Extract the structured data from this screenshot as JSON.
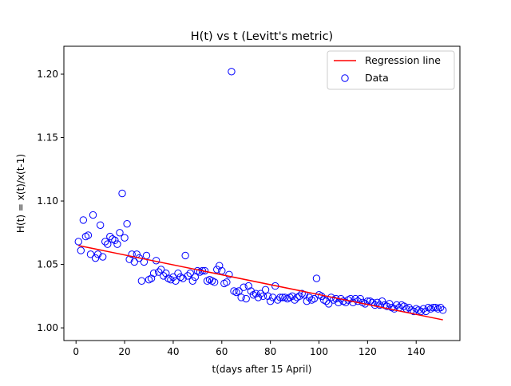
{
  "chart_data": {
    "type": "scatter",
    "title": "H(t) vs t (Levitt's metric)",
    "xlabel": "t(days after 15 April)",
    "ylabel": "H(t) = x(t)/x(t-1)",
    "xlim": [
      -5,
      158
    ],
    "ylim": [
      0.99,
      1.222
    ],
    "xticks": [
      0,
      20,
      40,
      60,
      80,
      100,
      120,
      140
    ],
    "xtick_labels": [
      "0",
      "20",
      "40",
      "60",
      "80",
      "100",
      "120",
      "140"
    ],
    "yticks": [
      1.0,
      1.05,
      1.1,
      1.15,
      1.2
    ],
    "ytick_labels": [
      "1.00",
      "1.05",
      "1.10",
      "1.15",
      "1.20"
    ],
    "grid": false,
    "legend": {
      "position": "top-right",
      "entries": [
        {
          "label": "Regression line",
          "kind": "line",
          "color": "#ff0000"
        },
        {
          "label": "Data",
          "kind": "marker",
          "color": "#0000ff"
        }
      ]
    },
    "series": [
      {
        "name": "Data",
        "kind": "scatter",
        "marker": "open-circle",
        "color": "#0000ff",
        "x": [
          1,
          2,
          3,
          4,
          5,
          6,
          7,
          8,
          9,
          10,
          11,
          12,
          13,
          14,
          15,
          16,
          17,
          18,
          19,
          20,
          21,
          22,
          23,
          24,
          25,
          26,
          27,
          28,
          29,
          30,
          31,
          32,
          33,
          34,
          35,
          36,
          37,
          38,
          39,
          40,
          41,
          42,
          43,
          44,
          45,
          46,
          47,
          48,
          49,
          50,
          51,
          52,
          53,
          54,
          55,
          56,
          57,
          58,
          59,
          60,
          61,
          62,
          63,
          64,
          65,
          66,
          67,
          68,
          69,
          70,
          71,
          72,
          73,
          74,
          75,
          76,
          77,
          78,
          79,
          80,
          81,
          82,
          83,
          84,
          85,
          86,
          87,
          88,
          89,
          90,
          91,
          92,
          93,
          94,
          95,
          96,
          97,
          98,
          99,
          100,
          101,
          102,
          103,
          104,
          105,
          106,
          107,
          108,
          109,
          110,
          111,
          112,
          113,
          114,
          115,
          116,
          117,
          118,
          119,
          120,
          121,
          122,
          123,
          124,
          125,
          126,
          127,
          128,
          129,
          130,
          131,
          132,
          133,
          134,
          135,
          136,
          137,
          138,
          139,
          140,
          141,
          142,
          143,
          144,
          145,
          146,
          147,
          148,
          149,
          150,
          151
        ],
        "y": [
          1.068,
          1.061,
          1.085,
          1.072,
          1.073,
          1.058,
          1.089,
          1.055,
          1.058,
          1.081,
          1.056,
          1.068,
          1.066,
          1.072,
          1.07,
          1.069,
          1.066,
          1.075,
          1.106,
          1.071,
          1.082,
          1.054,
          1.058,
          1.052,
          1.058,
          1.055,
          1.037,
          1.052,
          1.057,
          1.038,
          1.039,
          1.043,
          1.053,
          1.044,
          1.046,
          1.041,
          1.043,
          1.039,
          1.038,
          1.04,
          1.037,
          1.043,
          1.04,
          1.039,
          1.057,
          1.041,
          1.043,
          1.037,
          1.04,
          1.045,
          1.044,
          1.045,
          1.045,
          1.037,
          1.038,
          1.037,
          1.036,
          1.046,
          1.049,
          1.045,
          1.035,
          1.036,
          1.042,
          1.202,
          1.029,
          1.028,
          1.029,
          1.024,
          1.032,
          1.023,
          1.033,
          1.029,
          1.026,
          1.027,
          1.024,
          1.027,
          1.025,
          1.03,
          1.025,
          1.021,
          1.024,
          1.033,
          1.022,
          1.024,
          1.024,
          1.024,
          1.023,
          1.024,
          1.025,
          1.022,
          1.024,
          1.025,
          1.027,
          1.026,
          1.021,
          1.024,
          1.022,
          1.023,
          1.039,
          1.026,
          1.025,
          1.022,
          1.021,
          1.019,
          1.024,
          1.022,
          1.023,
          1.02,
          1.023,
          1.021,
          1.02,
          1.022,
          1.023,
          1.02,
          1.023,
          1.021,
          1.023,
          1.02,
          1.019,
          1.021,
          1.021,
          1.02,
          1.018,
          1.02,
          1.018,
          1.021,
          1.018,
          1.017,
          1.019,
          1.016,
          1.015,
          1.018,
          1.016,
          1.018,
          1.017,
          1.015,
          1.016,
          1.014,
          1.013,
          1.015,
          1.014,
          1.013,
          1.015,
          1.013,
          1.016,
          1.015,
          1.016,
          1.016,
          1.015,
          1.016,
          1.014
        ]
      },
      {
        "name": "Regression line",
        "kind": "line",
        "color": "#ff0000",
        "x": [
          1,
          151
        ],
        "y": [
          1.0649,
          1.0063
        ]
      }
    ]
  }
}
